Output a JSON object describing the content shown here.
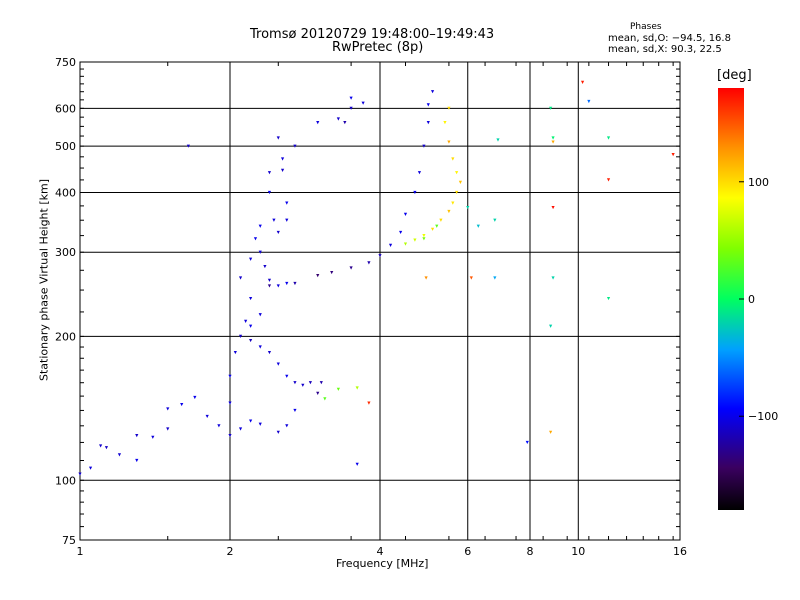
{
  "header": {
    "title_line1": "Tromsø 20120729 19:48:00–19:49:43",
    "title_line2": "RwPretec (8p)",
    "phases_title": "Phases",
    "phases_o": "mean, sd,O: −94.5, 16.8",
    "phases_x": "mean, sd,X:  90.3, 22.5"
  },
  "colorbar": {
    "unit_label": "deg",
    "ticks": [
      {
        "value": 100,
        "label": "100"
      },
      {
        "value": 0,
        "label": "0"
      },
      {
        "value": -100,
        "label": "−100"
      }
    ],
    "range": [
      -180,
      180
    ]
  },
  "chart_data": {
    "type": "scatter",
    "title": "Tromsø 20120729 19:48:00–19:49:43",
    "subtitle": "RwPretec (8p)",
    "xlabel": "Frequency [MHz]",
    "ylabel": "Stationary phase Virtual Height [km]",
    "xscale": "log",
    "yscale": "log",
    "xlim": [
      1,
      16
    ],
    "ylim": [
      75,
      750
    ],
    "xticks": [
      1,
      2,
      4,
      6,
      8,
      10,
      16
    ],
    "yticks": [
      75,
      100,
      200,
      300,
      400,
      500,
      600,
      750
    ],
    "grid": true,
    "color_quantity": "phase [deg]",
    "series": [
      {
        "points": [
          [
            1.0,
            103,
            -110
          ],
          [
            1.05,
            106,
            -105
          ],
          [
            1.1,
            118,
            -110
          ],
          [
            1.13,
            117,
            -112
          ],
          [
            1.2,
            113,
            -108
          ],
          [
            1.3,
            110,
            -100
          ],
          [
            1.3,
            124,
            -110
          ],
          [
            1.4,
            123,
            -105
          ],
          [
            1.5,
            128,
            -110
          ],
          [
            1.5,
            141,
            -105
          ],
          [
            1.6,
            144,
            -100
          ],
          [
            1.7,
            149,
            -100
          ],
          [
            1.8,
            136,
            -105
          ],
          [
            1.9,
            130,
            -105
          ],
          [
            2.0,
            124,
            -110
          ],
          [
            2.1,
            128,
            -105
          ],
          [
            2.2,
            133,
            -100
          ],
          [
            2.3,
            131,
            -105
          ],
          [
            2.5,
            126,
            -110
          ],
          [
            2.6,
            130,
            -105
          ],
          [
            2.7,
            140,
            -100
          ],
          [
            2.8,
            158,
            -110
          ],
          [
            2.9,
            160,
            -115
          ],
          [
            3.0,
            152,
            -130
          ],
          [
            3.05,
            160,
            -120
          ]
        ]
      },
      {
        "points": [
          [
            2.0,
            145,
            -105
          ],
          [
            2.0,
            165,
            -100
          ],
          [
            2.05,
            185,
            -105
          ],
          [
            2.1,
            200,
            -110
          ],
          [
            2.15,
            215,
            -105
          ],
          [
            2.2,
            210,
            -100
          ],
          [
            2.3,
            190,
            -105
          ],
          [
            2.4,
            185,
            -110
          ],
          [
            2.5,
            175,
            -105
          ],
          [
            2.6,
            165,
            -100
          ],
          [
            2.7,
            160,
            -110
          ],
          [
            2.3,
            222,
            -105
          ],
          [
            2.2,
            196,
            -115
          ]
        ]
      },
      {
        "points": [
          [
            2.1,
            265,
            -110
          ],
          [
            2.2,
            290,
            -105
          ],
          [
            2.25,
            320,
            -100
          ],
          [
            2.3,
            300,
            -105
          ],
          [
            2.35,
            280,
            -110
          ],
          [
            2.4,
            262,
            -110
          ],
          [
            2.5,
            255,
            -105
          ],
          [
            2.6,
            258,
            -100
          ],
          [
            2.5,
            330,
            -110
          ],
          [
            2.6,
            350,
            -105
          ],
          [
            2.6,
            380,
            -100
          ],
          [
            2.55,
            470,
            -105
          ],
          [
            2.5,
            520,
            -110
          ],
          [
            2.4,
            440,
            -110
          ],
          [
            2.4,
            400,
            -100
          ],
          [
            2.45,
            350,
            -105
          ],
          [
            2.3,
            340,
            -100
          ],
          [
            2.2,
            240,
            -105
          ]
        ]
      },
      {
        "points": [
          [
            2.4,
            255,
            -130
          ],
          [
            2.7,
            258,
            -120
          ],
          [
            3.0,
            268,
            -140
          ],
          [
            3.2,
            272,
            -135
          ],
          [
            3.5,
            278,
            -130
          ],
          [
            3.8,
            285,
            -120
          ],
          [
            4.0,
            295,
            -115
          ],
          [
            4.2,
            310,
            -105
          ],
          [
            4.4,
            330,
            -100
          ],
          [
            4.5,
            360,
            -100
          ],
          [
            4.7,
            400,
            -100
          ],
          [
            4.8,
            440,
            -105
          ],
          [
            4.9,
            500,
            -110
          ],
          [
            5.0,
            560,
            -105
          ],
          [
            5.0,
            610,
            -100
          ],
          [
            5.1,
            650,
            -105
          ]
        ]
      },
      {
        "points": [
          [
            4.5,
            312,
            60
          ],
          [
            4.7,
            318,
            70
          ],
          [
            4.9,
            325,
            80
          ],
          [
            5.1,
            335,
            100
          ],
          [
            5.3,
            350,
            100
          ],
          [
            5.5,
            365,
            110
          ],
          [
            5.6,
            380,
            95
          ],
          [
            5.7,
            400,
            100
          ],
          [
            5.8,
            420,
            110
          ],
          [
            5.7,
            440,
            90
          ],
          [
            5.6,
            470,
            100
          ],
          [
            5.5,
            510,
            120
          ],
          [
            5.4,
            560,
            90
          ],
          [
            5.5,
            600,
            100
          ],
          [
            4.9,
            320,
            40
          ],
          [
            5.2,
            340,
            30
          ]
        ]
      },
      {
        "points": [
          [
            3.4,
            560,
            -120
          ],
          [
            3.5,
            600,
            -110
          ],
          [
            3.7,
            615,
            -105
          ],
          [
            3.5,
            630,
            -100
          ],
          [
            3.3,
            570,
            -110
          ],
          [
            3.0,
            560,
            -105
          ]
        ]
      },
      {
        "points": [
          [
            1.65,
            500,
            -110
          ],
          [
            2.7,
            500,
            -110
          ],
          [
            2.55,
            445,
            -110
          ],
          [
            3.1,
            148,
            30
          ],
          [
            3.3,
            155,
            35
          ],
          [
            3.6,
            156,
            60
          ],
          [
            3.8,
            145,
            165
          ],
          [
            3.6,
            108,
            -100
          ],
          [
            4.95,
            265,
            130
          ],
          [
            6.1,
            265,
            150
          ],
          [
            6.8,
            265,
            -40
          ],
          [
            6.3,
            340,
            -30
          ],
          [
            6.8,
            350,
            -20
          ],
          [
            7.9,
            120,
            -90
          ],
          [
            8.8,
            600,
            -10
          ],
          [
            8.9,
            510,
            120
          ],
          [
            8.9,
            520,
            -5
          ],
          [
            8.9,
            372,
            175
          ],
          [
            8.9,
            265,
            -20
          ],
          [
            8.8,
            210,
            -20
          ],
          [
            8.8,
            126,
            120
          ],
          [
            10.2,
            680,
            170
          ],
          [
            10.5,
            620,
            -60
          ],
          [
            11.5,
            520,
            -10
          ],
          [
            11.5,
            425,
            170
          ],
          [
            11.5,
            240,
            -10
          ],
          [
            15.5,
            480,
            170
          ],
          [
            6.9,
            515,
            -20
          ],
          [
            6.0,
            372,
            -20
          ]
        ]
      }
    ]
  }
}
